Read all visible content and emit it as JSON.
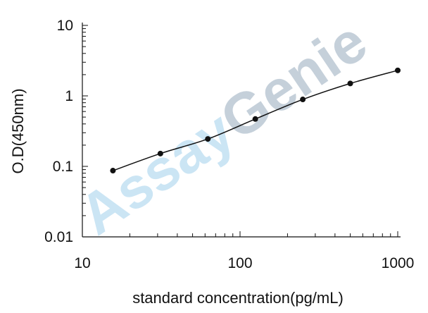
{
  "chart_data": {
    "type": "line",
    "title": "",
    "xlabel": "standard concentration(pg/mL)",
    "ylabel": "O.D(450nm)",
    "xscale": "log",
    "yscale": "log",
    "xlim": [
      10,
      1000
    ],
    "ylim": [
      0.01,
      10
    ],
    "grid": false,
    "legend": "none",
    "x_ticks": [
      {
        "value": 10,
        "label": "10"
      },
      {
        "value": 100,
        "label": "100"
      },
      {
        "value": 1000,
        "label": "1000"
      }
    ],
    "y_ticks": [
      {
        "value": 0.01,
        "label": "0.01"
      },
      {
        "value": 0.1,
        "label": "0.1"
      },
      {
        "value": 1,
        "label": "1"
      },
      {
        "value": 10,
        "label": "10"
      }
    ],
    "series": [
      {
        "color": "#111111",
        "points": [
          {
            "x": 15.625,
            "y": 0.087
          },
          {
            "x": 31.25,
            "y": 0.152
          },
          {
            "x": 62.5,
            "y": 0.245
          },
          {
            "x": 125,
            "y": 0.47
          },
          {
            "x": 250,
            "y": 0.89
          },
          {
            "x": 500,
            "y": 1.5
          },
          {
            "x": 1000,
            "y": 2.3
          }
        ]
      }
    ],
    "watermark": {
      "text_a": "Assay",
      "text_b": "Genie",
      "color_a": "#a9d4ee",
      "color_b": "#9fb1c2"
    }
  }
}
